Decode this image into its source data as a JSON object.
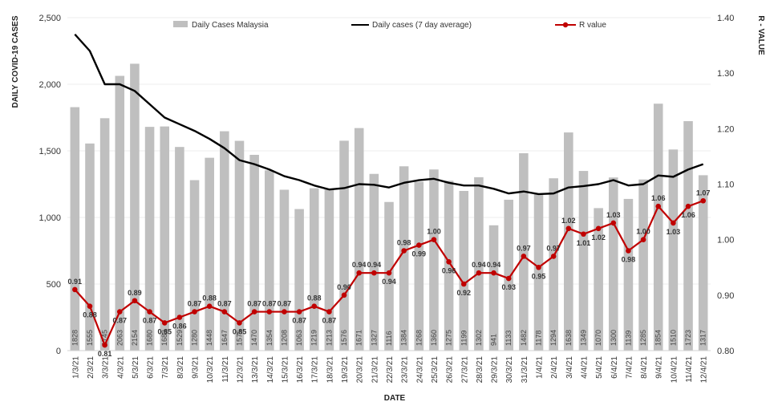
{
  "chart_data": {
    "type": "bar",
    "title": "",
    "xlabel": "DATE",
    "ylabel": "DAILY COVID-19 CASES",
    "y2label": "R - VALUE",
    "ylim": [
      0,
      2500
    ],
    "y2lim": [
      0.8,
      1.4
    ],
    "yticks": [
      "0",
      "500",
      "1,000",
      "1,500",
      "2,000",
      "2,500"
    ],
    "y2ticks": [
      "0.80",
      "0.90",
      "1.00",
      "1.10",
      "1.20",
      "1.30",
      "1.40"
    ],
    "legend_position": "top",
    "categories": [
      "1/3/21",
      "2/3/21",
      "3/3/21",
      "4/3/21",
      "5/3/21",
      "6/3/21",
      "7/3/21",
      "8/3/21",
      "9/3/21",
      "10/3/21",
      "11/3/21",
      "12/3/21",
      "13/3/21",
      "14/3/21",
      "15/3/21",
      "16/3/21",
      "17/3/21",
      "18/3/21",
      "19/3/21",
      "20/3/21",
      "21/3/21",
      "22/3/21",
      "23/3/21",
      "24/3/21",
      "25/3/21",
      "26/3/21",
      "27/3/21",
      "28/3/21",
      "29/3/21",
      "30/3/21",
      "31/3/21",
      "1/4/21",
      "2/4/21",
      "3/4/21",
      "4/4/21",
      "5/4/21",
      "6/4/21",
      "7/4/21",
      "8/4/21",
      "9/4/21",
      "10/4/21",
      "11/4/21",
      "12/4/21"
    ],
    "series": [
      {
        "name": "Daily Cases Malaysia",
        "kind": "bar",
        "color": "#bfbfbf",
        "values": [
          1828,
          1555,
          1745,
          2063,
          2154,
          1680,
          1683,
          1529,
          1280,
          1448,
          1647,
          1575,
          1470,
          1354,
          1208,
          1063,
          1219,
          1213,
          1576,
          1671,
          1327,
          1116,
          1384,
          1268,
          1360,
          1275,
          1199,
          1302,
          941,
          1133,
          1482,
          1178,
          1294,
          1638,
          1349,
          1070,
          1300,
          1139,
          1285,
          1854,
          1510,
          1723,
          1317
        ],
        "labels": [
          "1828",
          "1555",
          "1745",
          "2063",
          "2154",
          "1680",
          "1683",
          "1529",
          "1280",
          "1448",
          "1647",
          "1575",
          "1470",
          "1354",
          "1208",
          "1063",
          "1219",
          "1213",
          "1576",
          "1671",
          "1327",
          "1116",
          "1384",
          "1268",
          "1360",
          "1275",
          "1199",
          "1302",
          "941",
          "1133",
          "1482",
          "1178",
          "1294",
          "1638",
          "1349",
          "1070",
          "1300",
          "1139",
          "1285",
          "1854",
          "1510",
          "1723",
          "1317"
        ]
      },
      {
        "name": "Daily cases (7 day average)",
        "kind": "line",
        "color": "#000000",
        "values": [
          2375,
          2250,
          2000,
          2000,
          1950,
          1850,
          1750,
          1700,
          1650,
          1590,
          1520,
          1430,
          1400,
          1360,
          1310,
          1280,
          1240,
          1210,
          1220,
          1250,
          1245,
          1225,
          1260,
          1280,
          1290,
          1260,
          1240,
          1240,
          1215,
          1180,
          1195,
          1175,
          1180,
          1225,
          1235,
          1250,
          1280,
          1240,
          1250,
          1315,
          1305,
          1360,
          1400
        ]
      },
      {
        "name": "R value",
        "kind": "line-marker",
        "axis": "right",
        "color": "#c00000",
        "values": [
          0.91,
          0.88,
          0.81,
          0.87,
          0.89,
          0.87,
          0.85,
          0.86,
          0.87,
          0.88,
          0.87,
          0.85,
          0.87,
          0.87,
          0.87,
          0.87,
          0.88,
          0.87,
          0.9,
          0.94,
          0.94,
          0.94,
          0.98,
          0.99,
          1.0,
          0.96,
          0.92,
          0.94,
          0.94,
          0.93,
          0.97,
          0.95,
          0.97,
          1.02,
          1.01,
          1.02,
          1.03,
          0.98,
          1.0,
          1.06,
          1.03,
          1.06,
          1.07
        ],
        "labels": [
          "0.91",
          "0.88",
          "0.81",
          "0.87",
          "0.89",
          "0.87",
          "0.85",
          "0.86",
          "0.87",
          "0.88",
          "0.87",
          "0.85",
          "0.87",
          "0.87",
          "0.87",
          "0.87",
          "0.88",
          "0.87",
          "0.90",
          "0.94",
          "0.94",
          "0.94",
          "0.98",
          "0.99",
          "1.00",
          "0.96",
          "0.92",
          "0.94",
          "0.94",
          "0.93",
          "0.97",
          "0.95",
          "0.97",
          "1.02",
          "1.01",
          "1.02",
          "1.03",
          "0.98",
          "1.00",
          "1.06",
          "1.03",
          "1.06",
          "1.07"
        ]
      }
    ]
  }
}
